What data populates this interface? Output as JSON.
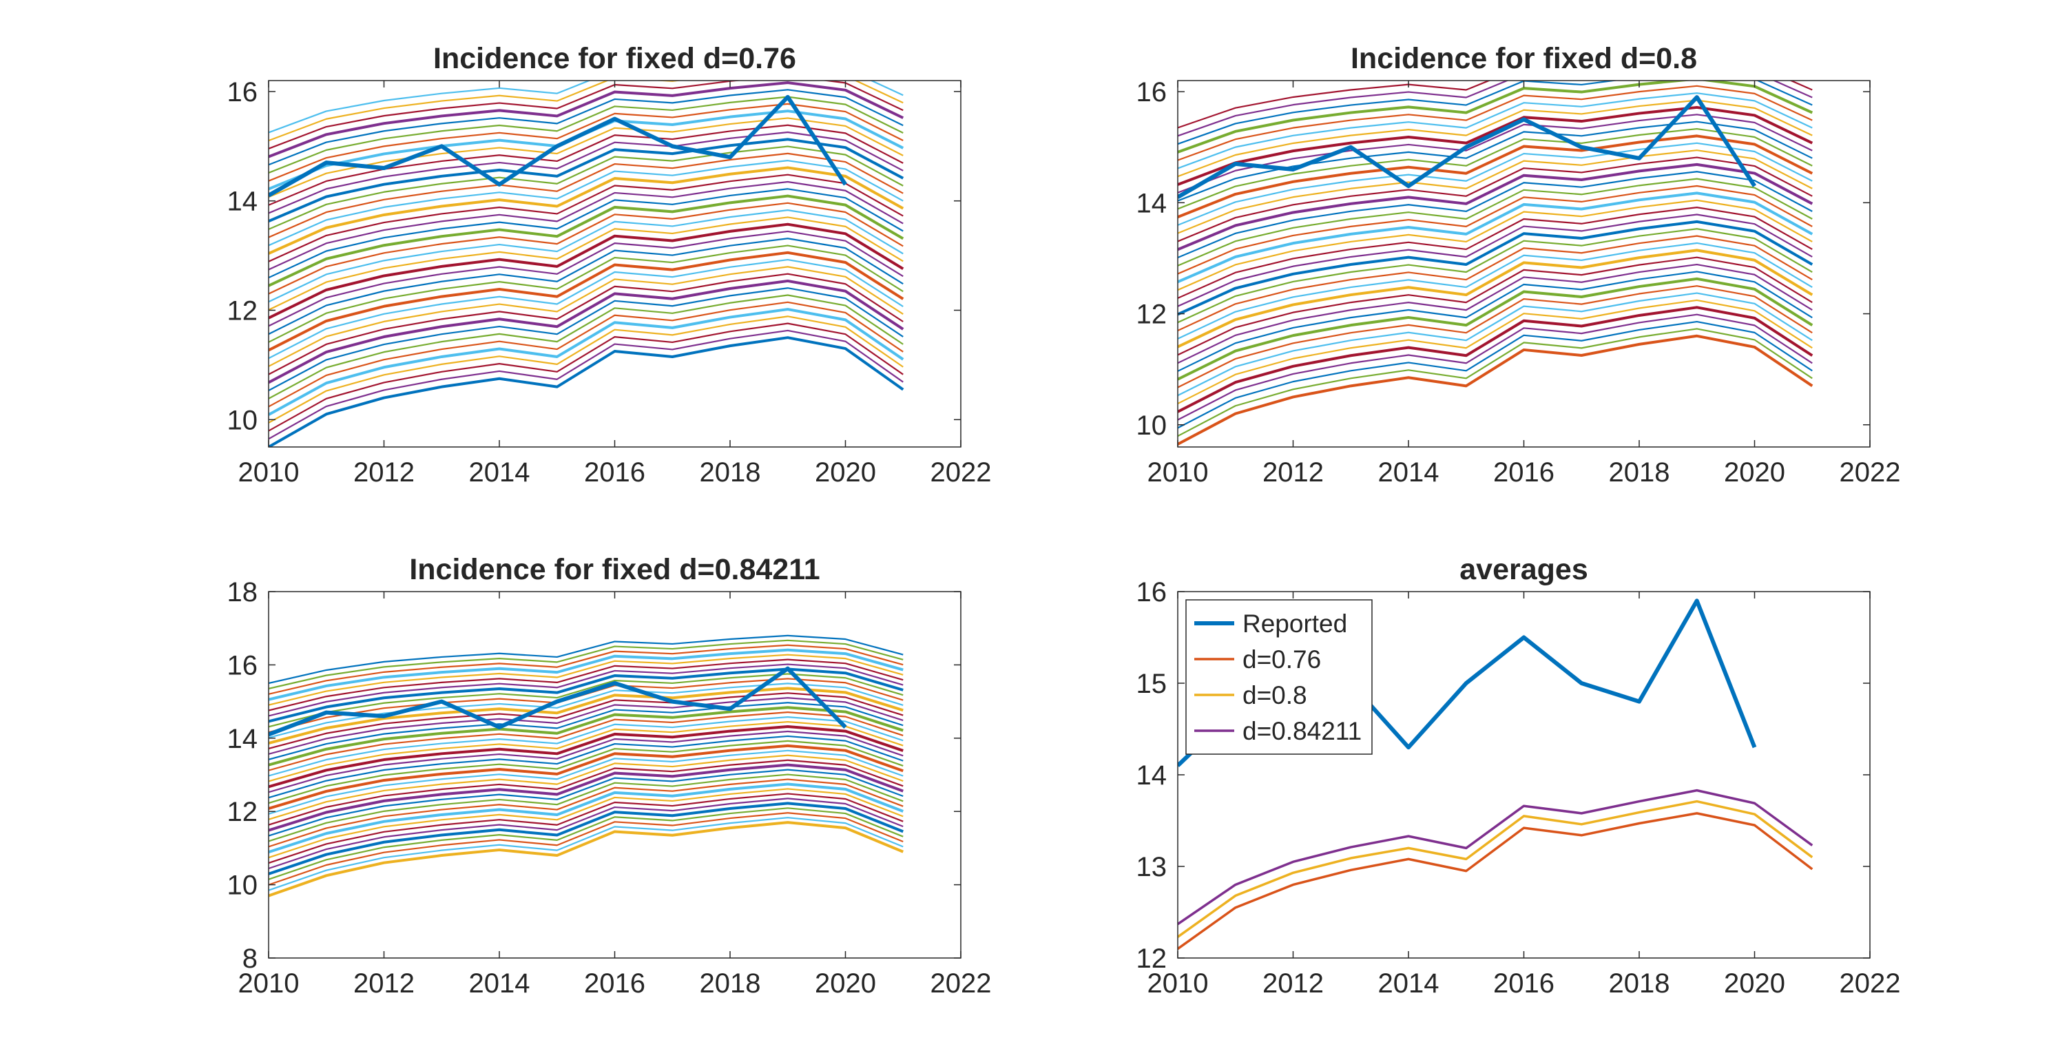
{
  "chart_data": [
    {
      "type": "line",
      "title": "Incidence for fixed d=0.76",
      "xlim": [
        2010,
        2022
      ],
      "ylim": [
        9.5,
        16.2
      ],
      "xticks": [
        2010,
        2012,
        2014,
        2016,
        2018,
        2020,
        2022
      ],
      "yticks": [
        10,
        12,
        14,
        16
      ],
      "years": [
        2010,
        2011,
        2012,
        2013,
        2014,
        2015,
        2016,
        2017,
        2018,
        2019,
        2020,
        2021
      ],
      "series": [
        {
          "name": "Reported",
          "x": [
            2010,
            2011,
            2012,
            2013,
            2014,
            2015,
            2016,
            2017,
            2018,
            2019,
            2020
          ],
          "values": [
            14.1,
            14.7,
            14.6,
            15.0,
            14.3,
            15.0,
            15.5,
            15.0,
            14.8,
            15.9,
            14.3
          ]
        }
      ],
      "simulation": {
        "count": 40,
        "base_min": 9.5,
        "base_max": 15.25,
        "profile": [
          0,
          0.6,
          0.9,
          1.1,
          1.25,
          1.1,
          1.75,
          1.65,
          1.85,
          2.0,
          1.8,
          1.05
        ]
      },
      "grid": false
    },
    {
      "type": "line",
      "title": "Incidence for fixed d=0.8",
      "xlim": [
        2010,
        2022
      ],
      "ylim": [
        9.6,
        16.2
      ],
      "xticks": [
        2010,
        2012,
        2014,
        2016,
        2018,
        2020,
        2022
      ],
      "yticks": [
        10,
        12,
        14,
        16
      ],
      "years": [
        2010,
        2011,
        2012,
        2013,
        2014,
        2015,
        2016,
        2017,
        2018,
        2019,
        2020,
        2021
      ],
      "series": [
        {
          "name": "Reported",
          "x": [
            2010,
            2011,
            2012,
            2013,
            2014,
            2015,
            2016,
            2017,
            2018,
            2019,
            2020
          ],
          "values": [
            14.1,
            14.7,
            14.6,
            15.0,
            14.3,
            15.0,
            15.5,
            15.0,
            14.8,
            15.9,
            14.3
          ]
        }
      ],
      "simulation": {
        "count": 40,
        "base_min": 9.65,
        "base_max": 15.35,
        "profile": [
          0,
          0.55,
          0.85,
          1.05,
          1.2,
          1.05,
          1.7,
          1.6,
          1.8,
          1.95,
          1.75,
          1.05
        ]
      },
      "grid": false
    },
    {
      "type": "line",
      "title": "Incidence for fixed d=0.84211",
      "xlim": [
        2010,
        2022
      ],
      "ylim": [
        8,
        18
      ],
      "xticks": [
        2010,
        2012,
        2014,
        2016,
        2018,
        2020,
        2022
      ],
      "yticks": [
        8,
        10,
        12,
        14,
        16,
        18
      ],
      "years": [
        2010,
        2011,
        2012,
        2013,
        2014,
        2015,
        2016,
        2017,
        2018,
        2019,
        2020,
        2021
      ],
      "series": [
        {
          "name": "Reported",
          "x": [
            2010,
            2011,
            2012,
            2013,
            2014,
            2015,
            2016,
            2017,
            2018,
            2019,
            2020
          ],
          "values": [
            14.1,
            14.7,
            14.6,
            15.0,
            14.3,
            15.0,
            15.5,
            15.0,
            14.8,
            15.9,
            14.3
          ]
        }
      ],
      "simulation": {
        "count": 40,
        "base_min": 9.7,
        "base_max": 15.5,
        "profile": [
          0,
          0.55,
          0.9,
          1.1,
          1.25,
          1.1,
          1.75,
          1.65,
          1.85,
          2.0,
          1.85,
          1.2
        ]
      },
      "grid": false
    },
    {
      "type": "line",
      "title": "averages",
      "xlim": [
        2010,
        2022
      ],
      "ylim": [
        12,
        16
      ],
      "xticks": [
        2010,
        2012,
        2014,
        2016,
        2018,
        2020,
        2022
      ],
      "yticks": [
        12,
        13,
        14,
        15,
        16
      ],
      "legend": "top-left",
      "series": [
        {
          "name": "Reported",
          "color": "#0072BD",
          "x": [
            2010,
            2011,
            2012,
            2013,
            2014,
            2015,
            2016,
            2017,
            2018,
            2019,
            2020
          ],
          "values": [
            14.1,
            14.7,
            14.6,
            15.0,
            14.3,
            15.0,
            15.5,
            15.0,
            14.8,
            15.9,
            14.3
          ]
        },
        {
          "name": "d=0.76",
          "color": "#D95319",
          "x": [
            2010,
            2011,
            2012,
            2013,
            2014,
            2015,
            2016,
            2017,
            2018,
            2019,
            2020,
            2021
          ],
          "values": [
            12.1,
            12.55,
            12.8,
            12.96,
            13.08,
            12.95,
            13.42,
            13.34,
            13.47,
            13.58,
            13.45,
            12.97
          ]
        },
        {
          "name": "d=0.8",
          "color": "#EDB120",
          "x": [
            2010,
            2011,
            2012,
            2013,
            2014,
            2015,
            2016,
            2017,
            2018,
            2019,
            2020,
            2021
          ],
          "values": [
            12.23,
            12.68,
            12.93,
            13.09,
            13.2,
            13.08,
            13.55,
            13.46,
            13.59,
            13.71,
            13.57,
            13.1
          ]
        },
        {
          "name": "d=0.84211",
          "color": "#7E2F8E",
          "x": [
            2010,
            2011,
            2012,
            2013,
            2014,
            2015,
            2016,
            2017,
            2018,
            2019,
            2020,
            2021
          ],
          "values": [
            12.37,
            12.8,
            13.05,
            13.21,
            13.33,
            13.2,
            13.66,
            13.58,
            13.71,
            13.83,
            13.69,
            13.23
          ]
        }
      ],
      "grid": false
    }
  ]
}
